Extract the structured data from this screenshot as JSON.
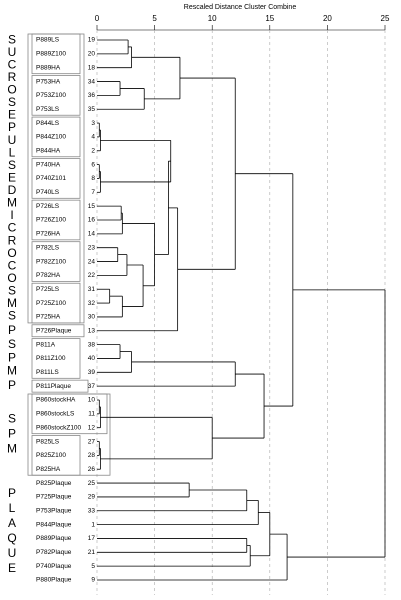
{
  "chart_data": {
    "type": "dendrogram",
    "title": "Rescaled Distance Cluster Combine",
    "xlim": [
      0,
      25
    ],
    "xticks": [
      0,
      5,
      10,
      15,
      20,
      25
    ],
    "grid": true,
    "color": "#000000",
    "leaves": [
      {
        "label": "P889LS",
        "case": 19
      },
      {
        "label": "P889Z100",
        "case": 20
      },
      {
        "label": "P889HA",
        "case": 18
      },
      {
        "label": "P753HA",
        "case": 34
      },
      {
        "label": "P753Z100",
        "case": 36
      },
      {
        "label": "P753LS",
        "case": 35
      },
      {
        "label": "P844LS",
        "case": 3
      },
      {
        "label": "P844Z100",
        "case": 4
      },
      {
        "label": "P844HA",
        "case": 2
      },
      {
        "label": "P740HA",
        "case": 6
      },
      {
        "label": "P740Z101",
        "case": 8
      },
      {
        "label": "P740LS",
        "case": 7
      },
      {
        "label": "P726LS",
        "case": 15
      },
      {
        "label": "P726Z100",
        "case": 16
      },
      {
        "label": "P726HA",
        "case": 14
      },
      {
        "label": "P782LS",
        "case": 23
      },
      {
        "label": "P782Z100",
        "case": 24
      },
      {
        "label": "P782HA",
        "case": 22
      },
      {
        "label": "P725LS",
        "case": 31
      },
      {
        "label": "P725Z100",
        "case": 32
      },
      {
        "label": "P725HA",
        "case": 30
      },
      {
        "label": "P726Plaque",
        "case": 13
      },
      {
        "label": "P811A",
        "case": 38
      },
      {
        "label": "P811Z100",
        "case": 40
      },
      {
        "label": "P811LS",
        "case": 39
      },
      {
        "label": "P811Plaque",
        "case": 37
      },
      {
        "label": "P860stockHA",
        "case": 10
      },
      {
        "label": "P860stockLS",
        "case": 11
      },
      {
        "label": "P860stockZ100",
        "case": 12
      },
      {
        "label": "P825LS",
        "case": 27
      },
      {
        "label": "P825Z100",
        "case": 28
      },
      {
        "label": "P825HA",
        "case": 26
      },
      {
        "label": "P825Plaque",
        "case": 25
      },
      {
        "label": "P725Plaque",
        "case": 29
      },
      {
        "label": "P753Plaque",
        "case": 33
      },
      {
        "label": "P844Plaque",
        "case": 1
      },
      {
        "label": "P889Plaque",
        "case": 17
      },
      {
        "label": "P782Plaque",
        "case": 21
      },
      {
        "label": "P740Plaque",
        "case": 5
      },
      {
        "label": "P880Plaque",
        "case": 9
      }
    ],
    "merges": [
      {
        "children": [
          0,
          1
        ],
        "distance": 2.7
      },
      {
        "children": [
          40,
          2
        ],
        "distance": 3.0
      },
      {
        "children": [
          3,
          4
        ],
        "distance": 2.0
      },
      {
        "children": [
          42,
          5
        ],
        "distance": 4.1
      },
      {
        "children": [
          41,
          43
        ],
        "distance": 7.2
      },
      {
        "children": [
          6,
          7
        ],
        "distance": 0.2
      },
      {
        "children": [
          45,
          8
        ],
        "distance": 0.3
      },
      {
        "children": [
          9,
          10
        ],
        "distance": 0.2
      },
      {
        "children": [
          47,
          11
        ],
        "distance": 0.3
      },
      {
        "children": [
          46,
          48
        ],
        "distance": 6.4
      },
      {
        "children": [
          12,
          13
        ],
        "distance": 2.1
      },
      {
        "children": [
          50,
          14
        ],
        "distance": 2.2
      },
      {
        "children": [
          15,
          16
        ],
        "distance": 1.8
      },
      {
        "children": [
          52,
          17
        ],
        "distance": 2.6
      },
      {
        "children": [
          18,
          19
        ],
        "distance": 1.1
      },
      {
        "children": [
          54,
          20
        ],
        "distance": 2.2
      },
      {
        "children": [
          53,
          55
        ],
        "distance": 4.0
      },
      {
        "children": [
          51,
          56
        ],
        "distance": 5.0
      },
      {
        "children": [
          57,
          49
        ],
        "distance": 6.2
      },
      {
        "children": [
          58,
          21
        ],
        "distance": 7.0
      },
      {
        "children": [
          44,
          59
        ],
        "distance": 12.0
      },
      {
        "children": [
          22,
          23
        ],
        "distance": 2.0
      },
      {
        "children": [
          61,
          24
        ],
        "distance": 3.0
      },
      {
        "children": [
          62,
          25
        ],
        "distance": 12.0
      },
      {
        "children": [
          26,
          27
        ],
        "distance": 0.2
      },
      {
        "children": [
          64,
          28
        ],
        "distance": 0.3
      },
      {
        "children": [
          29,
          30
        ],
        "distance": 0.2
      },
      {
        "children": [
          66,
          31
        ],
        "distance": 0.3
      },
      {
        "children": [
          65,
          67
        ],
        "distance": 10.0
      },
      {
        "children": [
          63,
          68
        ],
        "distance": 14.5
      },
      {
        "children": [
          60,
          69
        ],
        "distance": 17.0
      },
      {
        "children": [
          32,
          33
        ],
        "distance": 8.0
      },
      {
        "children": [
          71,
          34
        ],
        "distance": 13.0
      },
      {
        "children": [
          72,
          35
        ],
        "distance": 14.0
      },
      {
        "children": [
          36,
          37
        ],
        "distance": 13.0
      },
      {
        "children": [
          74,
          38
        ],
        "distance": 13.3
      },
      {
        "children": [
          73,
          75
        ],
        "distance": 15.0
      },
      {
        "children": [
          76,
          39
        ],
        "distance": 16.5
      },
      {
        "children": [
          70,
          77
        ],
        "distance": 25.0
      }
    ],
    "groups": [
      {
        "label": "SUCROSEPULSEDMICROCOSMS"
      },
      {
        "label": "P"
      },
      {
        "label": "SPM"
      },
      {
        "label": "P"
      },
      {
        "label": "SPM"
      },
      {
        "label": "PLAQUE"
      }
    ]
  }
}
